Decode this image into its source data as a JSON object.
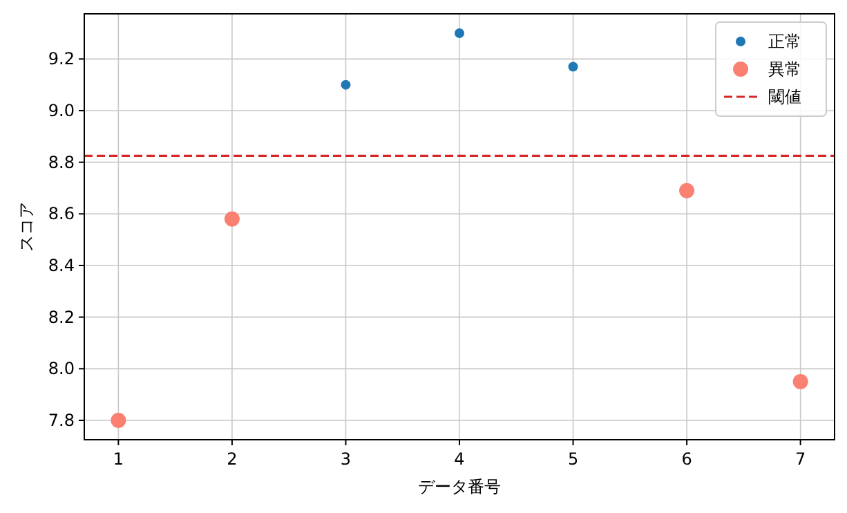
{
  "chart_data": {
    "type": "scatter",
    "xlabel": "データ番号",
    "ylabel": "スコア",
    "series": [
      {
        "name": "正常",
        "color": "#1f77b4",
        "x": [
          3,
          4,
          5
        ],
        "values": [
          9.1,
          9.3,
          9.17
        ]
      },
      {
        "name": "異常",
        "color": "#fa8072",
        "x": [
          1,
          2,
          6,
          7
        ],
        "values": [
          7.8,
          8.58,
          8.69,
          7.95
        ]
      }
    ],
    "ref_lines": [
      {
        "axis": "y",
        "value": 8.825,
        "label": "閾値",
        "color": "#d62728",
        "line_style": "dashed"
      }
    ],
    "xlim": [
      0.7,
      7.3
    ],
    "ylim": [
      7.725,
      9.375
    ],
    "xticks": [
      1,
      2,
      3,
      4,
      5,
      6,
      7
    ],
    "yticks": [
      7.8,
      {
        "value": 8,
        "label": "8.0"
      },
      8.2,
      8.4,
      8.6,
      8.8,
      {
        "value": 9,
        "label": "9.0"
      },
      9.2
    ],
    "grid": true,
    "legend": "top right",
    "marker": "circle"
  }
}
